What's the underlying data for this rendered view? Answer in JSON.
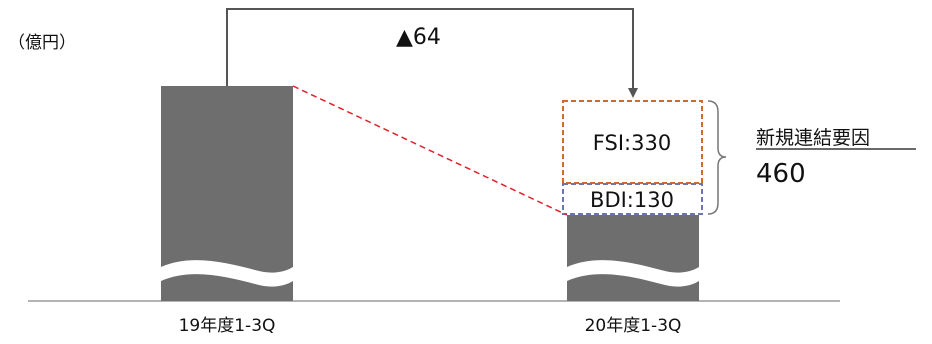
{
  "chart_data": {
    "type": "bar",
    "unit": "（億円）",
    "categories": [
      "19年度1-3Q",
      "20年度1-3Q"
    ],
    "axis_break": true,
    "change": {
      "label": "▲64",
      "value": -64
    },
    "stacked_segments": [
      {
        "label": "BDI:130",
        "value": 130,
        "color": "#6c74b4"
      },
      {
        "label": "FSI:330",
        "value": 330,
        "color": "#d06b2a"
      }
    ],
    "annotation": {
      "title": "新規連結要因",
      "value": "460"
    },
    "colors": {
      "bar": "#6e6e6e",
      "trend_line": "#e0212b",
      "arrow": "#555555"
    }
  }
}
